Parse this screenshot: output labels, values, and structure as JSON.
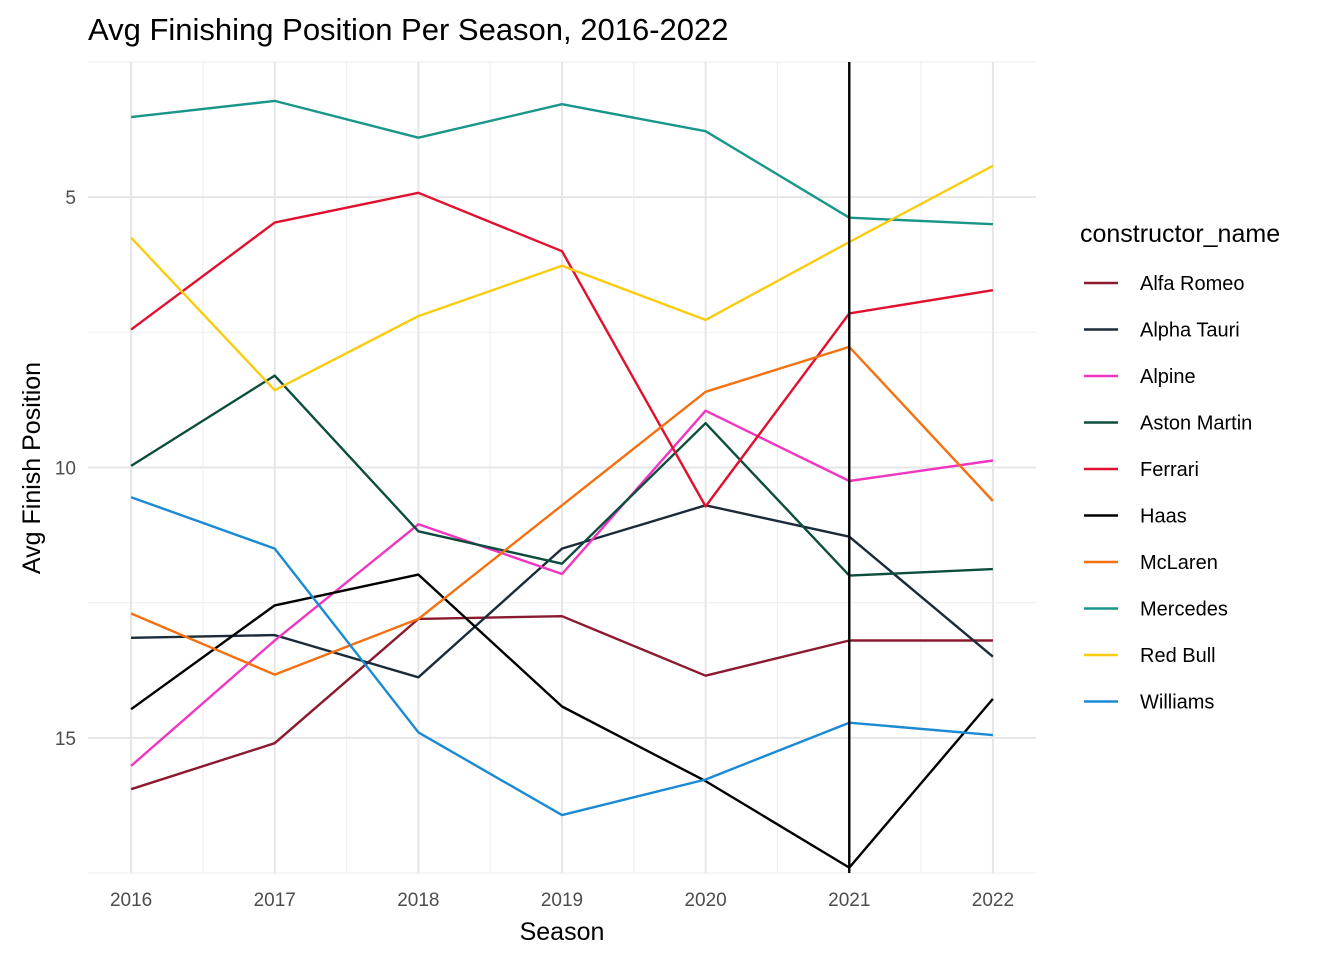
{
  "chart_data": {
    "type": "line",
    "title": "Avg Finishing Position Per Season, 2016-2022",
    "xlabel": "Season",
    "ylabel": "Avg Finish Position",
    "y_reversed": true,
    "ylim": [
      17.5,
      2.5
    ],
    "xlim": [
      2015.7,
      2022.3
    ],
    "x": [
      2016,
      2017,
      2018,
      2019,
      2020,
      2021,
      2022
    ],
    "x_ticks": [
      "2016",
      "2017",
      "2018",
      "2019",
      "2020",
      "2021",
      "2022"
    ],
    "y_ticks": [
      "5",
      "10",
      "15"
    ],
    "vline": {
      "x": 2021,
      "color": "#000000"
    },
    "grid": true,
    "legend_title": "constructor_name",
    "legend_position": "right",
    "series": [
      {
        "name": "Alfa Romeo",
        "color": "#8b1a2e",
        "values": [
          15.95,
          15.1,
          12.8,
          12.75,
          13.85,
          13.2,
          13.2
        ]
      },
      {
        "name": "Alpha Tauri",
        "color": "#1c2b3a",
        "values": [
          13.15,
          13.1,
          13.88,
          11.5,
          10.7,
          11.28,
          13.5
        ]
      },
      {
        "name": "Alpine",
        "color": "#f135c0",
        "values": [
          15.52,
          13.2,
          11.05,
          11.97,
          8.95,
          10.25,
          9.87
        ]
      },
      {
        "name": "Aston Martin",
        "color": "#0d4d3e",
        "values": [
          9.97,
          8.3,
          11.18,
          11.78,
          9.18,
          12.0,
          11.88
        ]
      },
      {
        "name": "Ferrari",
        "color": "#e0112f",
        "values": [
          7.45,
          5.47,
          4.92,
          6.0,
          10.72,
          7.15,
          6.72
        ]
      },
      {
        "name": "Haas",
        "color": "#000000",
        "values": [
          14.47,
          12.55,
          11.98,
          14.42,
          15.8,
          17.4,
          14.28
        ]
      },
      {
        "name": "McLaren",
        "color": "#f57010",
        "values": [
          12.7,
          13.83,
          12.8,
          10.7,
          8.6,
          7.77,
          10.62
        ]
      },
      {
        "name": "Mercedes",
        "color": "#18968a",
        "values": [
          3.52,
          3.22,
          3.9,
          3.28,
          3.78,
          5.38,
          5.5
        ]
      },
      {
        "name": "Red Bull",
        "color": "#f9cc0f",
        "values": [
          5.75,
          8.57,
          7.2,
          6.27,
          7.27,
          5.83,
          4.42
        ]
      },
      {
        "name": "Williams",
        "color": "#1a8ad4",
        "values": [
          10.55,
          11.5,
          14.9,
          16.43,
          15.77,
          14.72,
          14.95
        ]
      }
    ]
  }
}
